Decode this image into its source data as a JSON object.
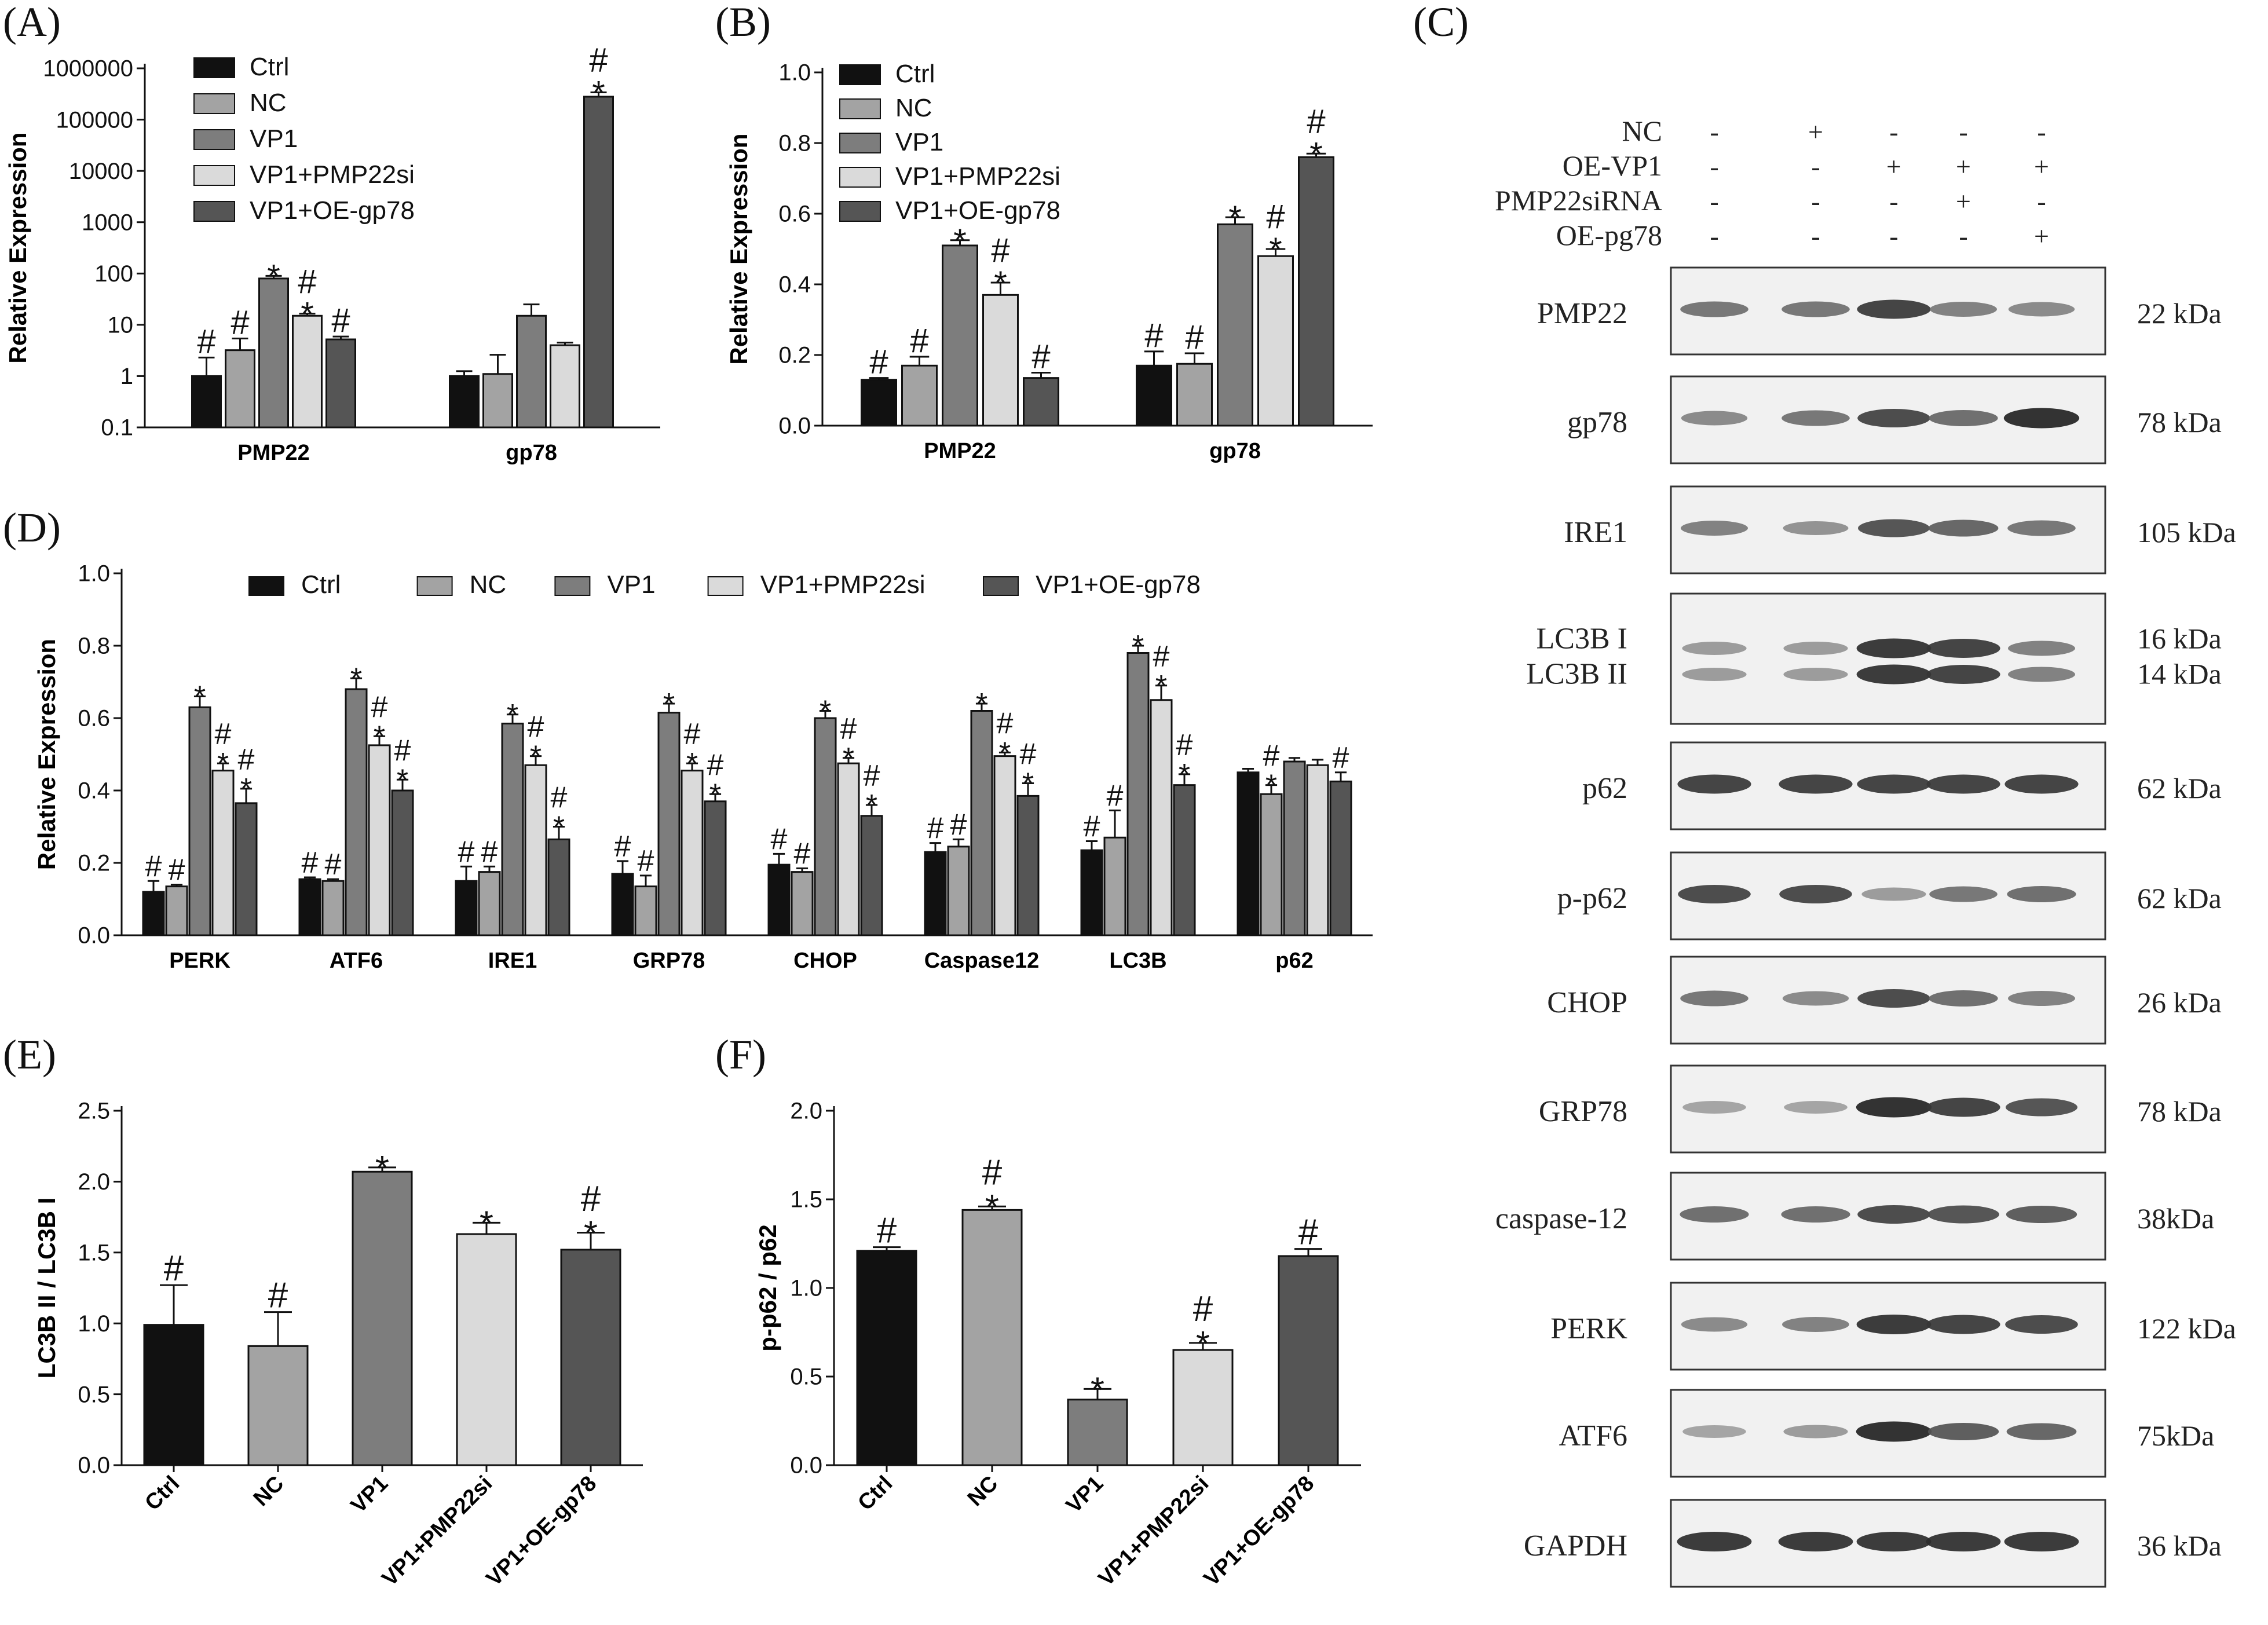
{
  "figure": {
    "colors": {
      "Ctrl": "#111111",
      "NC": "#a3a3a3",
      "VP1": "#7d7d7d",
      "VP1+PMP22si": "#dadada",
      "VP1+OE-gp78": "#555555"
    }
  },
  "chart_data": [
    {
      "panel": "(A)",
      "type": "bar",
      "yscale": "log",
      "ylabel": "Relative Expression",
      "ylim": [
        0.1,
        1000000
      ],
      "yticks": [
        "0.1",
        "1",
        "10",
        "100",
        "1000",
        "10000",
        "100000",
        "1000000"
      ],
      "categories": [
        "PMP22",
        "gp78"
      ],
      "legend": "top-left",
      "series": [
        {
          "name": "Ctrl",
          "values": [
            1.0,
            1.0
          ],
          "errors": [
            1.3,
            0.25
          ],
          "marks": [
            "#",
            ""
          ]
        },
        {
          "name": "NC",
          "values": [
            3.2,
            1.1
          ],
          "errors": [
            2.2,
            1.5
          ],
          "marks": [
            "#",
            ""
          ]
        },
        {
          "name": "VP1",
          "values": [
            80,
            15
          ],
          "errors": [
            10,
            10
          ],
          "marks": [
            "*",
            ""
          ]
        },
        {
          "name": "VP1+PMP22si",
          "values": [
            15,
            4.0
          ],
          "errors": [
            1.5,
            0.5
          ],
          "marks": [
            "*#",
            ""
          ]
        },
        {
          "name": "VP1+OE-gp78",
          "values": [
            5.2,
            280000
          ],
          "errors": [
            0.7,
            60000
          ],
          "marks": [
            "#",
            "*#"
          ]
        }
      ]
    },
    {
      "panel": "(B)",
      "type": "bar",
      "ylabel": "Relative Expression",
      "ylim": [
        0,
        1.0
      ],
      "yticks": [
        "0.0",
        "0.2",
        "0.4",
        "0.6",
        "0.8",
        "1.0"
      ],
      "categories": [
        "PMP22",
        "gp78"
      ],
      "legend": "top-left",
      "series": [
        {
          "name": "Ctrl",
          "values": [
            0.13,
            0.17
          ],
          "errors": [
            0.005,
            0.04
          ],
          "marks": [
            "#",
            "#"
          ]
        },
        {
          "name": "NC",
          "values": [
            0.17,
            0.175
          ],
          "errors": [
            0.025,
            0.03
          ],
          "marks": [
            "#",
            "#"
          ]
        },
        {
          "name": "VP1",
          "values": [
            0.51,
            0.57
          ],
          "errors": [
            0.015,
            0.02
          ],
          "marks": [
            "*",
            "*"
          ]
        },
        {
          "name": "VP1+PMP22si",
          "values": [
            0.37,
            0.48
          ],
          "errors": [
            0.035,
            0.02
          ],
          "marks": [
            "*#",
            "*#"
          ]
        },
        {
          "name": "VP1+OE-gp78",
          "values": [
            0.135,
            0.76
          ],
          "errors": [
            0.015,
            0.01
          ],
          "marks": [
            "#",
            "*#"
          ]
        }
      ]
    },
    {
      "panel": "(D)",
      "type": "bar",
      "ylabel": "Relative Expression",
      "ylim": [
        0,
        1.0
      ],
      "yticks": [
        "0.0",
        "0.2",
        "0.4",
        "0.6",
        "0.8",
        "1.0"
      ],
      "categories": [
        "PERK",
        "ATF6",
        "IRE1",
        "GRP78",
        "CHOP",
        "Caspase12",
        "LC3B",
        "p62"
      ],
      "legend": "top",
      "series": [
        {
          "name": "Ctrl",
          "values": [
            0.12,
            0.155,
            0.15,
            0.17,
            0.195,
            0.23,
            0.235,
            0.45
          ],
          "errors": [
            0.03,
            0.005,
            0.04,
            0.035,
            0.03,
            0.025,
            0.025,
            0.01
          ],
          "marks": [
            "#",
            "#",
            "#",
            "#",
            "#",
            "#",
            "#",
            ""
          ]
        },
        {
          "name": "NC",
          "values": [
            0.135,
            0.15,
            0.175,
            0.135,
            0.175,
            0.245,
            0.27,
            0.39
          ],
          "errors": [
            0.005,
            0.005,
            0.015,
            0.03,
            0.01,
            0.02,
            0.075,
            0.025
          ],
          "marks": [
            "#",
            "#",
            "#",
            "#",
            "#",
            "#",
            "#",
            "*#"
          ]
        },
        {
          "name": "VP1",
          "values": [
            0.63,
            0.68,
            0.585,
            0.615,
            0.6,
            0.62,
            0.78,
            0.48
          ],
          "errors": [
            0.03,
            0.03,
            0.025,
            0.025,
            0.02,
            0.02,
            0.02,
            0.01
          ],
          "marks": [
            "*",
            "*",
            "*",
            "*",
            "*",
            "*",
            "*",
            ""
          ]
        },
        {
          "name": "VP1+PMP22si",
          "values": [
            0.455,
            0.525,
            0.47,
            0.455,
            0.475,
            0.495,
            0.65,
            0.47
          ],
          "errors": [
            0.02,
            0.025,
            0.025,
            0.02,
            0.015,
            0.01,
            0.04,
            0.015
          ],
          "marks": [
            "*#",
            "*#",
            "*#",
            "*#",
            "*#",
            "*#",
            "*#",
            ""
          ]
        },
        {
          "name": "VP1+OE-gp78",
          "values": [
            0.365,
            0.4,
            0.265,
            0.37,
            0.33,
            0.385,
            0.415,
            0.425
          ],
          "errors": [
            0.04,
            0.03,
            0.035,
            0.02,
            0.03,
            0.035,
            0.03,
            0.025
          ],
          "marks": [
            "*#",
            "*#",
            "*#",
            "*#",
            "*#",
            "*#",
            "*#",
            "#"
          ]
        }
      ]
    },
    {
      "panel": "(E)",
      "type": "bar",
      "ylabel": "LC3B II / LC3B I",
      "ylim": [
        0,
        2.5
      ],
      "yticks": [
        "0.0",
        "0.5",
        "1.0",
        "1.5",
        "2.0",
        "2.5"
      ],
      "categories": [
        "Ctrl",
        "NC",
        "VP1",
        "VP1+PMP22si",
        "VP1+OE-gp78"
      ],
      "values": [
        0.99,
        0.84,
        2.07,
        1.63,
        1.52
      ],
      "errors": [
        0.28,
        0.24,
        0.03,
        0.08,
        0.12
      ],
      "marks": [
        "#",
        "#",
        "*",
        "*",
        "*#"
      ]
    },
    {
      "panel": "(F)",
      "type": "bar",
      "ylabel": "p-p62 / p62",
      "ylim": [
        0,
        2.0
      ],
      "yticks": [
        "0.0",
        "0.5",
        "1.0",
        "1.5",
        "2.0"
      ],
      "categories": [
        "Ctrl",
        "NC",
        "VP1",
        "VP1+PMP22si",
        "VP1+OE-gp78"
      ],
      "values": [
        1.21,
        1.44,
        0.37,
        0.65,
        1.18
      ],
      "errors": [
        0.02,
        0.02,
        0.06,
        0.04,
        0.04
      ],
      "marks": [
        "#",
        "*#",
        "*",
        "*#",
        "#"
      ]
    }
  ],
  "western_blot": {
    "panel": "(C)",
    "conditions": [
      {
        "label": "NC",
        "lanes": [
          "-",
          "+",
          "-",
          "-",
          "-"
        ]
      },
      {
        "label": "OE-VP1",
        "lanes": [
          "-",
          "-",
          "+",
          "+",
          "+"
        ]
      },
      {
        "label": "PMP22siRNA",
        "lanes": [
          "-",
          "-",
          "-",
          "+",
          "-"
        ]
      },
      {
        "label": "OE-pg78",
        "lanes": [
          "-",
          "-",
          "-",
          "-",
          "+"
        ]
      }
    ],
    "blots": [
      {
        "names": [
          "PMP22"
        ],
        "sizes": [
          "22 kDa"
        ],
        "band_intensity": [
          0.55,
          0.55,
          0.85,
          0.5,
          0.45
        ]
      },
      {
        "names": [
          "gp78"
        ],
        "sizes": [
          "78 kDa"
        ],
        "band_intensity": [
          0.45,
          0.55,
          0.8,
          0.6,
          0.95
        ]
      },
      {
        "names": [
          "IRE1"
        ],
        "sizes": [
          "105 kDa"
        ],
        "band_intensity": [
          0.5,
          0.4,
          0.75,
          0.65,
          0.55
        ]
      },
      {
        "names": [
          "LC3B I",
          "LC3B II"
        ],
        "sizes": [
          "16 kDa",
          "14 kDa"
        ],
        "band_intensity": [
          0.35,
          0.35,
          0.9,
          0.85,
          0.5
        ]
      },
      {
        "names": [
          "p62"
        ],
        "sizes": [
          "62 kDa"
        ],
        "band_intensity": [
          0.85,
          0.85,
          0.85,
          0.85,
          0.85
        ]
      },
      {
        "names": [
          "p-p62"
        ],
        "sizes": [
          "62 kDa"
        ],
        "band_intensity": [
          0.8,
          0.8,
          0.35,
          0.55,
          0.6
        ]
      },
      {
        "names": [
          "CHOP"
        ],
        "sizes": [
          "26 kDa"
        ],
        "band_intensity": [
          0.55,
          0.45,
          0.8,
          0.6,
          0.5
        ]
      },
      {
        "names": [
          "GRP78"
        ],
        "sizes": [
          "78 kDa"
        ],
        "band_intensity": [
          0.3,
          0.3,
          0.95,
          0.85,
          0.75
        ]
      },
      {
        "names": [
          "caspase-12"
        ],
        "sizes": [
          "38kDa"
        ],
        "band_intensity": [
          0.6,
          0.6,
          0.8,
          0.75,
          0.7
        ]
      },
      {
        "names": [
          "PERK"
        ],
        "sizes": [
          "122 kDa"
        ],
        "band_intensity": [
          0.45,
          0.5,
          0.9,
          0.85,
          0.8
        ]
      },
      {
        "names": [
          "ATF6"
        ],
        "sizes": [
          "75kDa"
        ],
        "band_intensity": [
          0.3,
          0.35,
          0.95,
          0.7,
          0.65
        ]
      },
      {
        "names": [
          "GAPDH"
        ],
        "sizes": [
          "36 kDa"
        ],
        "band_intensity": [
          0.9,
          0.9,
          0.9,
          0.9,
          0.9
        ]
      }
    ]
  }
}
